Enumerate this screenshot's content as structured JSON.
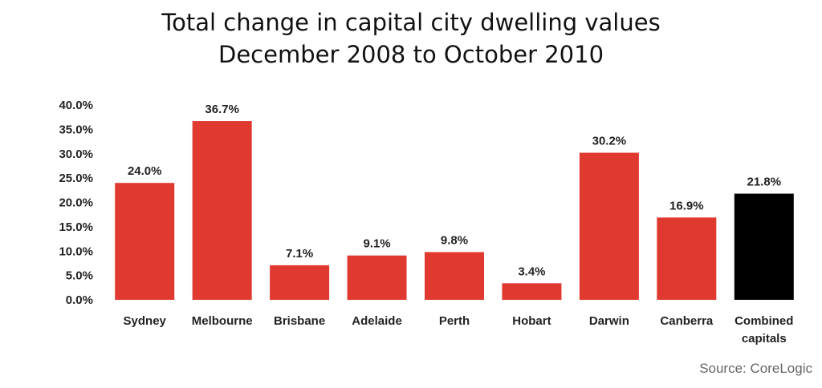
{
  "chart_data": {
    "type": "bar",
    "title": "Total change in capital city dwelling values",
    "subtitle": "December 2008 to October 2010",
    "categories": [
      "Sydney",
      "Melbourne",
      "Brisbane",
      "Adelaide",
      "Perth",
      "Hobart",
      "Darwin",
      "Canberra",
      "Combined capitals"
    ],
    "category_lines": [
      [
        "Sydney"
      ],
      [
        "Melbourne"
      ],
      [
        "Brisbane"
      ],
      [
        "Adelaide"
      ],
      [
        "Perth"
      ],
      [
        "Hobart"
      ],
      [
        "Darwin"
      ],
      [
        "Canberra"
      ],
      [
        "Combined",
        "capitals"
      ]
    ],
    "values": [
      24.0,
      36.7,
      7.1,
      9.1,
      9.8,
      3.4,
      30.2,
      16.9,
      21.8
    ],
    "value_labels": [
      "24.0%",
      "36.7%",
      "7.1%",
      "9.1%",
      "9.8%",
      "3.4%",
      "30.2%",
      "16.9%",
      "21.8%"
    ],
    "y_ticks": [
      0,
      5,
      10,
      15,
      20,
      25,
      30,
      35,
      40
    ],
    "y_tick_labels": [
      "0.0%",
      "5.0%",
      "10.0%",
      "15.0%",
      "20.0%",
      "25.0%",
      "30.0%",
      "35.0%",
      "40.0%"
    ],
    "ylim": [
      0,
      40
    ],
    "xlabel": "",
    "ylabel": "",
    "grid": false,
    "colors": {
      "bar": "#e0392f",
      "highlight_bar": "#000000",
      "highlight_category": "Combined capitals"
    }
  },
  "source": "Source: CoreLogic"
}
